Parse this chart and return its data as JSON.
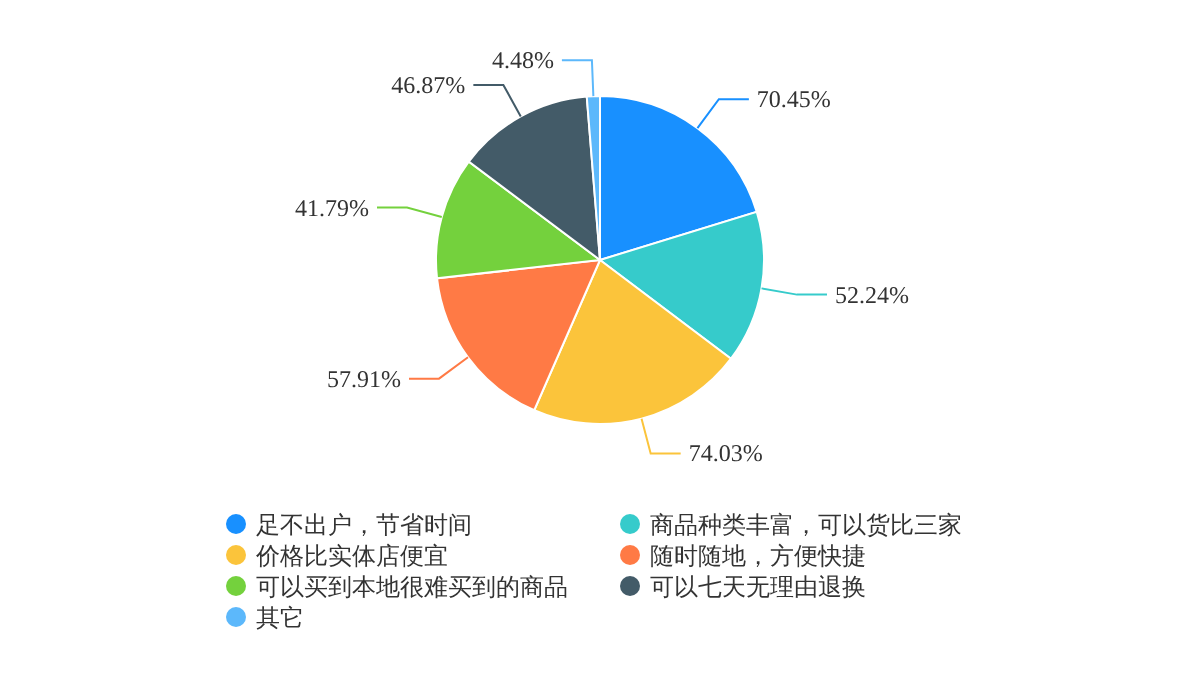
{
  "chart_data": {
    "type": "pie",
    "categories": [
      "足不出户，节省时间",
      "商品种类丰富，可以货比三家",
      "价格比实体店便宜",
      "随时随地，方便快捷",
      "可以买到本地很难买到的商品",
      "可以七天无理由退换",
      "其它"
    ],
    "values": [
      70.45,
      52.24,
      74.03,
      57.91,
      41.79,
      46.87,
      4.48
    ],
    "value_labels": [
      "70.45%",
      "52.24%",
      "74.03%",
      "57.91%",
      "41.79%",
      "46.87%",
      "4.48%"
    ],
    "colors": [
      "#1890ff",
      "#36cbcb",
      "#fbc43b",
      "#ff7a45",
      "#74d13d",
      "#435b68",
      "#5cb8fb"
    ],
    "legend": "bottom"
  }
}
